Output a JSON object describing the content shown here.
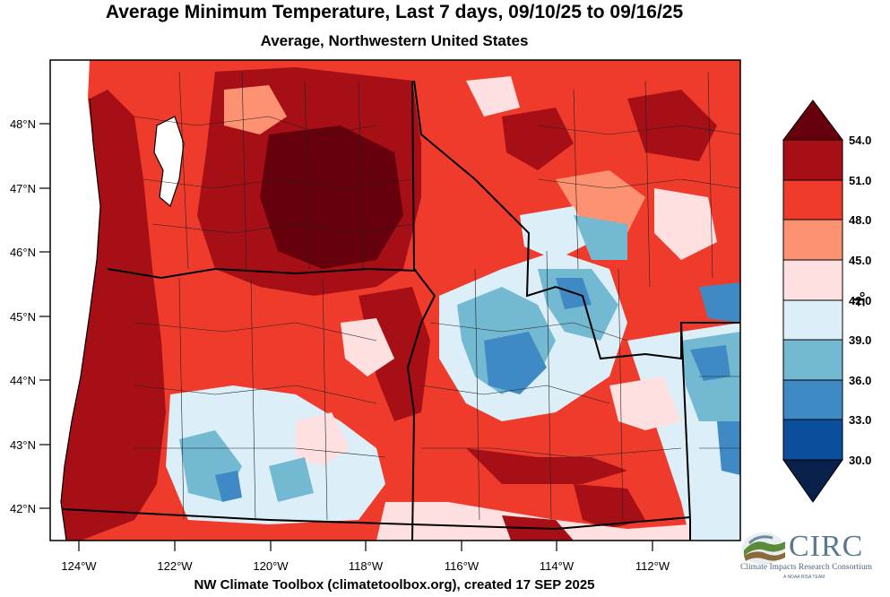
{
  "title": "Average Minimum Temperature, Last 7 days, 09/10/25 to 09/16/25",
  "subtitle": "Average, Northwestern United States",
  "lat_ticks": [
    "48°N",
    "47°N",
    "46°N",
    "45°N",
    "44°N",
    "43°N",
    "42°N"
  ],
  "lon_ticks": [
    "124°W",
    "122°W",
    "120°W",
    "118°W",
    "116°W",
    "114°W",
    "112°W"
  ],
  "colorbar": {
    "unit": "°F",
    "levels": [
      "54.0",
      "51.0",
      "48.0",
      "45.0",
      "42.0",
      "39.0",
      "36.0",
      "33.0",
      "30.0"
    ],
    "colors": [
      "#67000d",
      "#a50f15",
      "#ef3b2c",
      "#fc9272",
      "#fee0e0",
      "#dceef8",
      "#74b9d2",
      "#3f8ac4",
      "#0b4f9c",
      "#08204a"
    ]
  },
  "footer": "NW Climate Toolbox (climatetoolbox.org), created 17 SEP 2025",
  "logo": {
    "name": "CIRC",
    "subtitle": "Climate Impacts Research Consortium",
    "tagline": "A NOAA RISA TEAM"
  }
}
